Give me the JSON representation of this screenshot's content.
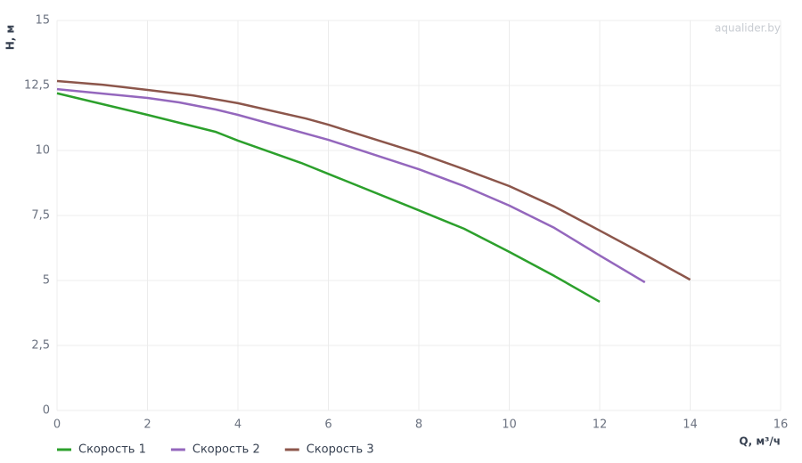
{
  "chart_data": {
    "type": "line",
    "watermark": "aqualider.by",
    "x_label": "Q, м³/ч",
    "y_label": "H, м",
    "xlim": [
      0,
      16
    ],
    "xticks": [
      0,
      2,
      4,
      6,
      8,
      10,
      12,
      14,
      16
    ],
    "ylim": [
      0,
      15
    ],
    "yticks": [
      0,
      {
        "value": 2.5,
        "label": "2,5"
      },
      5,
      {
        "value": 7.5,
        "label": "7,5"
      },
      10,
      {
        "value": 12.5,
        "label": "12,5"
      },
      15
    ],
    "grid": true,
    "legend": "bottom-left",
    "series": [
      {
        "name": "Скорость 1",
        "color": "#2ca02c",
        "x": [
          0,
          2,
          3.5,
          4,
          5.4,
          6,
          8,
          9,
          10,
          11,
          12
        ],
        "values": [
          12.2,
          11.37,
          10.72,
          10.38,
          9.52,
          9.1,
          7.7,
          6.99,
          6.1,
          5.17,
          4.18
        ]
      },
      {
        "name": "Скорость 2",
        "color": "#9467bd",
        "x": [
          0,
          2,
          2.7,
          3.5,
          4,
          6,
          8,
          9,
          10,
          11,
          12,
          13
        ],
        "values": [
          12.36,
          12.02,
          11.85,
          11.58,
          11.37,
          10.41,
          9.28,
          8.63,
          7.88,
          7.02,
          5.96,
          4.93
        ]
      },
      {
        "name": "Скорость 3",
        "color": "#8c564b",
        "x": [
          0,
          1,
          2,
          3,
          4,
          5.5,
          6,
          8,
          9,
          10,
          11,
          12,
          13,
          14
        ],
        "values": [
          12.67,
          12.53,
          12.33,
          12.12,
          11.82,
          11.23,
          10.99,
          9.9,
          9.28,
          8.63,
          7.84,
          6.92,
          5.99,
          5.03
        ]
      }
    ]
  }
}
